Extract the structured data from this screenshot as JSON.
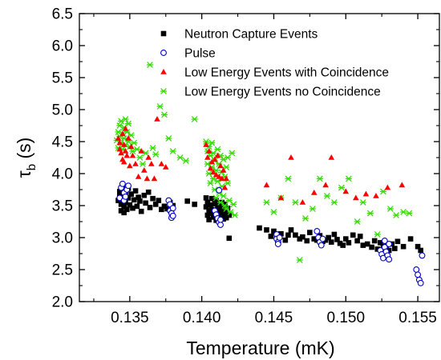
{
  "chart_data": {
    "type": "scatter",
    "xlabel": "Temperature (mK)",
    "ylabel": "τ_b (s)",
    "xlim": [
      0.1315,
      0.1565
    ],
    "ylim": [
      2.0,
      6.5
    ],
    "xticks": [
      "0.135",
      "0.140",
      "0.145",
      "0.150",
      "0.155"
    ],
    "yticks": [
      "2.0",
      "2.5",
      "3.0",
      "3.5",
      "4.0",
      "4.5",
      "5.0",
      "5.5",
      "6.0",
      "6.5"
    ],
    "legend_position": "top-right",
    "series": [
      {
        "name": "Neutron Capture Events",
        "marker": "filled-square",
        "color": "#000000",
        "points": [
          [
            0.1342,
            3.58
          ],
          [
            0.1343,
            3.65
          ],
          [
            0.1343,
            3.72
          ],
          [
            0.1344,
            3.52
          ],
          [
            0.1344,
            3.42
          ],
          [
            0.1345,
            3.81
          ],
          [
            0.1345,
            3.61
          ],
          [
            0.1346,
            3.48
          ],
          [
            0.1346,
            3.39
          ],
          [
            0.1347,
            3.69
          ],
          [
            0.1347,
            3.55
          ],
          [
            0.1348,
            3.44
          ],
          [
            0.1349,
            3.62
          ],
          [
            0.1349,
            3.77
          ],
          [
            0.135,
            3.51
          ],
          [
            0.1351,
            3.68
          ],
          [
            0.1352,
            3.46
          ],
          [
            0.1353,
            3.59
          ],
          [
            0.1354,
            3.73
          ],
          [
            0.1355,
            3.49
          ],
          [
            0.1356,
            3.63
          ],
          [
            0.1357,
            3.57
          ],
          [
            0.1358,
            3.41
          ],
          [
            0.136,
            3.66
          ],
          [
            0.1361,
            3.54
          ],
          [
            0.1363,
            3.71
          ],
          [
            0.1364,
            3.47
          ],
          [
            0.1366,
            3.61
          ],
          [
            0.1368,
            3.52
          ],
          [
            0.137,
            3.58
          ],
          [
            0.1372,
            3.44
          ],
          [
            0.1374,
            3.49
          ],
          [
            0.1376,
            3.45
          ],
          [
            0.1378,
            3.55
          ],
          [
            0.138,
            3.5
          ],
          [
            0.139,
            3.57
          ],
          [
            0.1395,
            3.52
          ],
          [
            0.1403,
            3.62
          ],
          [
            0.1403,
            3.48
          ],
          [
            0.1404,
            3.35
          ],
          [
            0.1404,
            3.55
          ],
          [
            0.1405,
            3.42
          ],
          [
            0.1405,
            3.28
          ],
          [
            0.1406,
            3.51
          ],
          [
            0.1406,
            3.38
          ],
          [
            0.1407,
            3.61
          ],
          [
            0.1407,
            3.44
          ],
          [
            0.1408,
            3.32
          ],
          [
            0.1409,
            3.53
          ],
          [
            0.1409,
            3.4
          ],
          [
            0.141,
            3.27
          ],
          [
            0.141,
            3.57
          ],
          [
            0.1411,
            3.45
          ],
          [
            0.1411,
            3.34
          ],
          [
            0.1412,
            3.5
          ],
          [
            0.1413,
            3.38
          ],
          [
            0.1413,
            3.3
          ],
          [
            0.1414,
            3.55
          ],
          [
            0.1414,
            3.42
          ],
          [
            0.1415,
            3.29
          ],
          [
            0.1415,
            3.47
          ],
          [
            0.1416,
            3.36
          ],
          [
            0.1416,
            3.52
          ],
          [
            0.1417,
            3.41
          ],
          [
            0.1417,
            3.31
          ],
          [
            0.1418,
            3.46
          ],
          [
            0.1419,
            3.35
          ],
          [
            0.1419,
            2.99
          ],
          [
            0.144,
            3.15
          ],
          [
            0.1445,
            3.12
          ],
          [
            0.1448,
            3.02
          ],
          [
            0.145,
            3.1
          ],
          [
            0.1452,
            3.0
          ],
          [
            0.1455,
            3.06
          ],
          [
            0.1458,
            2.96
          ],
          [
            0.146,
            3.04
          ],
          [
            0.1462,
            3.12
          ],
          [
            0.1465,
            3.04
          ],
          [
            0.1468,
            2.98
          ],
          [
            0.147,
            3.01
          ],
          [
            0.1473,
            2.95
          ],
          [
            0.1475,
            3.08
          ],
          [
            0.1478,
            2.98
          ],
          [
            0.148,
            2.96
          ],
          [
            0.1482,
            3.03
          ],
          [
            0.1484,
            2.94
          ],
          [
            0.1486,
            2.96
          ],
          [
            0.1488,
            3.0
          ],
          [
            0.149,
            2.93
          ],
          [
            0.1492,
            3.05
          ],
          [
            0.1494,
            2.97
          ],
          [
            0.1496,
            2.91
          ],
          [
            0.1498,
            2.88
          ],
          [
            0.15,
            2.98
          ],
          [
            0.1502,
            2.92
          ],
          [
            0.1505,
            3.04
          ],
          [
            0.1508,
            2.95
          ],
          [
            0.151,
            3.02
          ],
          [
            0.1512,
            2.88
          ],
          [
            0.1515,
            2.9
          ],
          [
            0.1518,
            2.85
          ],
          [
            0.152,
            2.95
          ],
          [
            0.1522,
            2.82
          ],
          [
            0.1524,
            2.92
          ],
          [
            0.1526,
            2.86
          ],
          [
            0.1528,
            2.88
          ],
          [
            0.153,
            2.8
          ],
          [
            0.1532,
            2.9
          ],
          [
            0.1534,
            2.83
          ],
          [
            0.1536,
            2.94
          ],
          [
            0.154,
            2.86
          ],
          [
            0.1545,
            2.98
          ],
          [
            0.155,
            2.86
          ],
          [
            0.1552,
            2.8
          ]
        ]
      },
      {
        "name": "Pulse",
        "marker": "open-circle",
        "color": "#0000cc",
        "points": [
          [
            0.1343,
            3.62
          ],
          [
            0.1344,
            3.78
          ],
          [
            0.1345,
            3.84
          ],
          [
            0.1346,
            3.7
          ],
          [
            0.1346,
            3.58
          ],
          [
            0.1347,
            3.64
          ],
          [
            0.1348,
            3.75
          ],
          [
            0.1349,
            3.81
          ],
          [
            0.1377,
            3.58
          ],
          [
            0.1378,
            3.52
          ],
          [
            0.1378,
            3.42
          ],
          [
            0.1379,
            3.38
          ],
          [
            0.1379,
            3.31
          ],
          [
            0.138,
            3.46
          ],
          [
            0.138,
            3.34
          ],
          [
            0.1409,
            3.42
          ],
          [
            0.141,
            3.36
          ],
          [
            0.1411,
            3.3
          ],
          [
            0.1412,
            3.24
          ],
          [
            0.1412,
            3.74
          ],
          [
            0.1413,
            3.2
          ],
          [
            0.1413,
            3.28
          ],
          [
            0.1452,
            3.05
          ],
          [
            0.1452,
            2.98
          ],
          [
            0.1453,
            2.93
          ],
          [
            0.1453,
            2.9
          ],
          [
            0.1454,
            3.0
          ],
          [
            0.148,
            3.1
          ],
          [
            0.1481,
            3.0
          ],
          [
            0.1482,
            2.93
          ],
          [
            0.1483,
            2.88
          ],
          [
            0.1484,
            2.98
          ],
          [
            0.1524,
            2.8
          ],
          [
            0.1525,
            2.74
          ],
          [
            0.1526,
            2.68
          ],
          [
            0.1527,
            2.95
          ],
          [
            0.1527,
            2.85
          ],
          [
            0.1528,
            2.78
          ],
          [
            0.1529,
            2.72
          ],
          [
            0.153,
            2.9
          ],
          [
            0.153,
            2.66
          ],
          [
            0.1549,
            2.5
          ],
          [
            0.155,
            2.42
          ],
          [
            0.1551,
            2.34
          ],
          [
            0.1552,
            2.29
          ],
          [
            0.1553,
            2.72
          ]
        ]
      },
      {
        "name": "Low Energy Events with Coincidence",
        "marker": "filled-triangle",
        "color": "#ff0000",
        "points": [
          [
            0.1342,
            4.55
          ],
          [
            0.1343,
            4.48
          ],
          [
            0.1343,
            4.38
          ],
          [
            0.1344,
            4.32
          ],
          [
            0.1345,
            4.62
          ],
          [
            0.1345,
            4.22
          ],
          [
            0.1346,
            4.45
          ],
          [
            0.1346,
            4.18
          ],
          [
            0.1347,
            4.7
          ],
          [
            0.1347,
            4.35
          ],
          [
            0.1348,
            4.28
          ],
          [
            0.1349,
            4.55
          ],
          [
            0.135,
            4.12
          ],
          [
            0.1351,
            4.42
          ],
          [
            0.1352,
            4.28
          ],
          [
            0.1354,
            4.15
          ],
          [
            0.1356,
            3.95
          ],
          [
            0.1358,
            4.35
          ],
          [
            0.136,
            4.05
          ],
          [
            0.1362,
            3.92
          ],
          [
            0.1363,
            4.25
          ],
          [
            0.1365,
            4.15
          ],
          [
            0.1367,
            3.92
          ],
          [
            0.1369,
            4.85
          ],
          [
            0.1372,
            4.15
          ],
          [
            0.1375,
            4.1
          ],
          [
            0.1403,
            4.45
          ],
          [
            0.1404,
            4.25
          ],
          [
            0.1405,
            4.35
          ],
          [
            0.1406,
            4.08
          ],
          [
            0.1407,
            4.18
          ],
          [
            0.1408,
            4.02
          ],
          [
            0.1409,
            4.22
          ],
          [
            0.141,
            3.98
          ],
          [
            0.1411,
            4.28
          ],
          [
            0.1412,
            3.95
          ],
          [
            0.1413,
            4.12
          ],
          [
            0.1414,
            3.92
          ],
          [
            0.1415,
            4.05
          ],
          [
            0.1416,
            3.78
          ],
          [
            0.1417,
            3.92
          ],
          [
            0.1445,
            3.82
          ],
          [
            0.1455,
            3.62
          ],
          [
            0.1462,
            4.25
          ],
          [
            0.147,
            3.55
          ],
          [
            0.1478,
            3.7
          ],
          [
            0.1486,
            3.82
          ],
          [
            0.149,
            4.25
          ],
          [
            0.15,
            3.72
          ],
          [
            0.1507,
            3.62
          ],
          [
            0.1514,
            3.68
          ],
          [
            0.1521,
            3.65
          ],
          [
            0.1529,
            3.78
          ],
          [
            0.1539,
            3.82
          ]
        ]
      },
      {
        "name": "Low Energy Events no Coincidence",
        "marker": "x-star",
        "color": "#33dd00",
        "points": [
          [
            0.1341,
            4.52
          ],
          [
            0.1342,
            4.65
          ],
          [
            0.1342,
            4.4
          ],
          [
            0.1343,
            4.75
          ],
          [
            0.1343,
            4.58
          ],
          [
            0.1344,
            4.48
          ],
          [
            0.1344,
            4.82
          ],
          [
            0.1345,
            4.62
          ],
          [
            0.1345,
            4.38
          ],
          [
            0.1346,
            4.72
          ],
          [
            0.1346,
            4.55
          ],
          [
            0.1347,
            4.45
          ],
          [
            0.1347,
            4.85
          ],
          [
            0.1348,
            4.65
          ],
          [
            0.1349,
            4.5
          ],
          [
            0.1349,
            4.78
          ],
          [
            0.135,
            4.42
          ],
          [
            0.1351,
            4.6
          ],
          [
            0.1352,
            4.35
          ],
          [
            0.1353,
            4.48
          ],
          [
            0.1355,
            4.38
          ],
          [
            0.1357,
            4.25
          ],
          [
            0.1359,
            4.15
          ],
          [
            0.1361,
            4.32
          ],
          [
            0.1364,
            5.7
          ],
          [
            0.1366,
            4.4
          ],
          [
            0.1368,
            4.3
          ],
          [
            0.1371,
            5.05
          ],
          [
            0.1374,
            4.92
          ],
          [
            0.1377,
            4.55
          ],
          [
            0.138,
            4.35
          ],
          [
            0.1385,
            4.25
          ],
          [
            0.1389,
            4.2
          ],
          [
            0.1395,
            4.85
          ],
          [
            0.1403,
            4.5
          ],
          [
            0.1404,
            4.35
          ],
          [
            0.1404,
            4.15
          ],
          [
            0.1405,
            4.42
          ],
          [
            0.1405,
            4.0
          ],
          [
            0.1406,
            4.28
          ],
          [
            0.1406,
            3.85
          ],
          [
            0.1407,
            4.48
          ],
          [
            0.1407,
            4.1
          ],
          [
            0.1408,
            3.92
          ],
          [
            0.1408,
            4.32
          ],
          [
            0.1409,
            3.75
          ],
          [
            0.1409,
            4.2
          ],
          [
            0.141,
            4.05
          ],
          [
            0.141,
            3.62
          ],
          [
            0.1411,
            4.38
          ],
          [
            0.1411,
            3.88
          ],
          [
            0.1412,
            4.15
          ],
          [
            0.1412,
            3.7
          ],
          [
            0.1413,
            4.28
          ],
          [
            0.1413,
            3.55
          ],
          [
            0.1414,
            4.02
          ],
          [
            0.1414,
            3.8
          ],
          [
            0.1415,
            4.22
          ],
          [
            0.1415,
            3.65
          ],
          [
            0.1416,
            3.95
          ],
          [
            0.1416,
            3.5
          ],
          [
            0.1417,
            4.1
          ],
          [
            0.1417,
            3.45
          ],
          [
            0.1418,
            3.85
          ],
          [
            0.1418,
            4.25
          ],
          [
            0.1419,
            3.58
          ],
          [
            0.142,
            3.4
          ],
          [
            0.1421,
            4.32
          ],
          [
            0.1422,
            3.52
          ],
          [
            0.1423,
            3.35
          ],
          [
            0.1445,
            3.55
          ],
          [
            0.145,
            3.4
          ],
          [
            0.1455,
            3.62
          ],
          [
            0.146,
            3.92
          ],
          [
            0.1465,
            3.55
          ],
          [
            0.1468,
            2.65
          ],
          [
            0.1472,
            3.3
          ],
          [
            0.1477,
            3.45
          ],
          [
            0.1482,
            3.92
          ],
          [
            0.1487,
            3.65
          ],
          [
            0.1492,
            3.55
          ],
          [
            0.1497,
            3.78
          ],
          [
            0.1502,
            3.92
          ],
          [
            0.1508,
            3.25
          ],
          [
            0.1512,
            3.55
          ],
          [
            0.1517,
            3.38
          ],
          [
            0.1522,
            3.05
          ],
          [
            0.1526,
            3.72
          ],
          [
            0.1531,
            3.45
          ],
          [
            0.1535,
            3.35
          ],
          [
            0.154,
            3.4
          ],
          [
            0.1544,
            3.38
          ]
        ]
      }
    ]
  }
}
